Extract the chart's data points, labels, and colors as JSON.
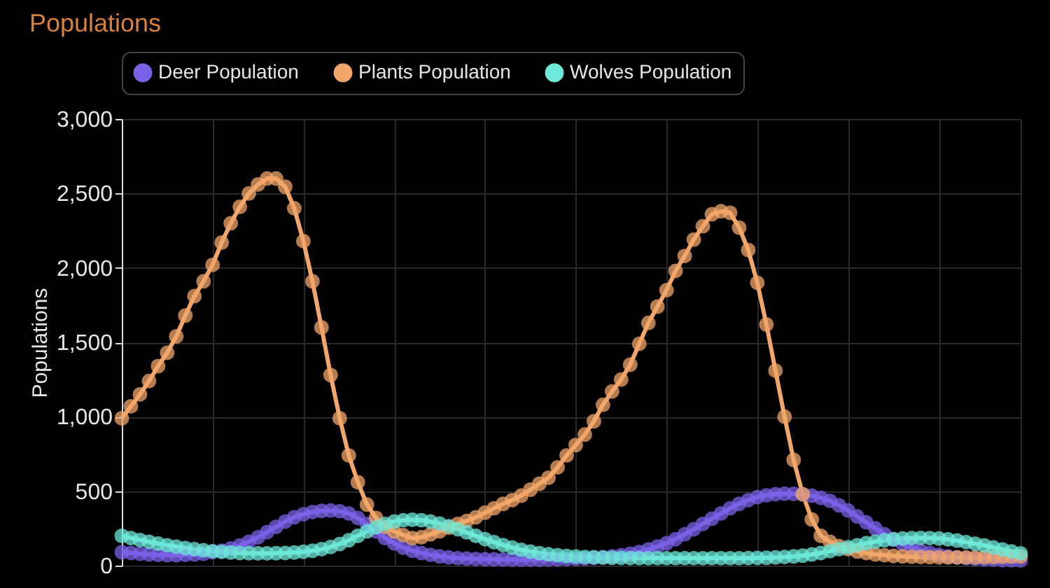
{
  "chart_data": {
    "type": "line",
    "title": "Populations",
    "ylabel": "Populations",
    "categories": [
      null,
      null,
      null,
      null,
      null,
      null,
      null,
      null,
      null,
      null,
      null,
      null,
      null,
      null,
      null,
      null,
      null,
      null,
      null,
      null,
      null,
      null,
      null,
      null,
      null,
      null,
      null,
      null,
      null,
      null,
      null,
      null,
      null,
      null,
      null,
      null,
      null,
      null,
      null,
      null,
      null,
      null,
      null,
      null,
      null,
      null,
      null,
      null,
      null,
      null,
      null,
      null,
      null,
      null,
      null,
      null,
      null,
      null,
      null,
      null,
      null,
      null,
      null,
      null,
      null,
      null,
      null,
      null,
      null,
      null,
      null,
      null,
      null,
      null,
      null,
      null,
      null,
      null,
      null,
      null,
      null,
      null,
      null,
      null,
      null,
      null,
      null,
      null,
      null,
      null,
      null,
      null,
      null,
      null,
      null,
      null,
      null,
      null,
      null,
      null
    ],
    "series": [
      {
        "name": "Deer Population",
        "color": "#7b61e8",
        "values": [
          90,
          85,
          80,
          75,
          72,
          70,
          70,
          72,
          75,
          80,
          90,
          100,
          115,
          135,
          160,
          190,
          225,
          260,
          295,
          325,
          345,
          360,
          368,
          370,
          365,
          350,
          320,
          280,
          230,
          185,
          150,
          120,
          100,
          85,
          72,
          62,
          55,
          50,
          47,
          45,
          43,
          42,
          41,
          40,
          40,
          40,
          40,
          41,
          42,
          44,
          46,
          48,
          52,
          56,
          62,
          70,
          80,
          92,
          108,
          128,
          150,
          178,
          210,
          245,
          280,
          315,
          350,
          385,
          415,
          440,
          460,
          472,
          480,
          483,
          482,
          478,
          470,
          455,
          435,
          405,
          370,
          330,
          290,
          250,
          210,
          175,
          145,
          120,
          100,
          85,
          72,
          62,
          55,
          50,
          46,
          42,
          40,
          38,
          36,
          35
        ]
      },
      {
        "name": "Plants Population",
        "color": "#f2a66a",
        "values": [
          990,
          1070,
          1150,
          1240,
          1340,
          1430,
          1540,
          1680,
          1810,
          1910,
          2020,
          2170,
          2300,
          2410,
          2500,
          2560,
          2600,
          2600,
          2545,
          2400,
          2180,
          1910,
          1600,
          1280,
          990,
          740,
          560,
          410,
          320,
          260,
          230,
          205,
          185,
          190,
          210,
          230,
          255,
          280,
          300,
          325,
          355,
          385,
          415,
          440,
          470,
          510,
          550,
          590,
          660,
          740,
          810,
          880,
          970,
          1080,
          1170,
          1250,
          1350,
          1490,
          1630,
          1740,
          1850,
          1980,
          2080,
          2190,
          2280,
          2360,
          2380,
          2370,
          2270,
          2120,
          1900,
          1620,
          1310,
          1000,
          710,
          480,
          310,
          200,
          160,
          130,
          110,
          95,
          85,
          75,
          70,
          65,
          62,
          60,
          58,
          57,
          56,
          55,
          55,
          55,
          55,
          56,
          57,
          58,
          60,
          62
        ]
      },
      {
        "name": "Wolves Population",
        "color": "#6ee8d8",
        "values": [
          200,
          185,
          172,
          160,
          148,
          137,
          127,
          118,
          110,
          103,
          97,
          92,
          88,
          85,
          83,
          82,
          82,
          83,
          85,
          88,
          93,
          100,
          110,
          125,
          145,
          170,
          200,
          230,
          258,
          280,
          296,
          305,
          308,
          305,
          296,
          282,
          265,
          245,
          223,
          200,
          178,
          157,
          138,
          121,
          106,
          94,
          84,
          76,
          70,
          65,
          61,
          58,
          56,
          54,
          53,
          52,
          51,
          50,
          50,
          50,
          50,
          50,
          50,
          50,
          50,
          50,
          50,
          50,
          50,
          51,
          52,
          53,
          55,
          58,
          62,
          67,
          75,
          85,
          97,
          110,
          123,
          137,
          150,
          161,
          170,
          177,
          182,
          185,
          186,
          185,
          182,
          176,
          168,
          158,
          147,
          135,
          122,
          108,
          95,
          82
        ]
      }
    ],
    "ylim": [
      0,
      3000
    ],
    "yticks": [
      0,
      500,
      {
        "value": 1000,
        "label": "1,000"
      },
      {
        "value": 1500,
        "label": "1,500"
      },
      {
        "value": 2000,
        "label": "2,000"
      },
      {
        "value": 2500,
        "label": "2,500"
      },
      {
        "value": 3000,
        "label": "3,000"
      }
    ],
    "grid": true,
    "legend": "top",
    "marker": "circle",
    "line_style": "solid",
    "tick_labels": "y"
  }
}
